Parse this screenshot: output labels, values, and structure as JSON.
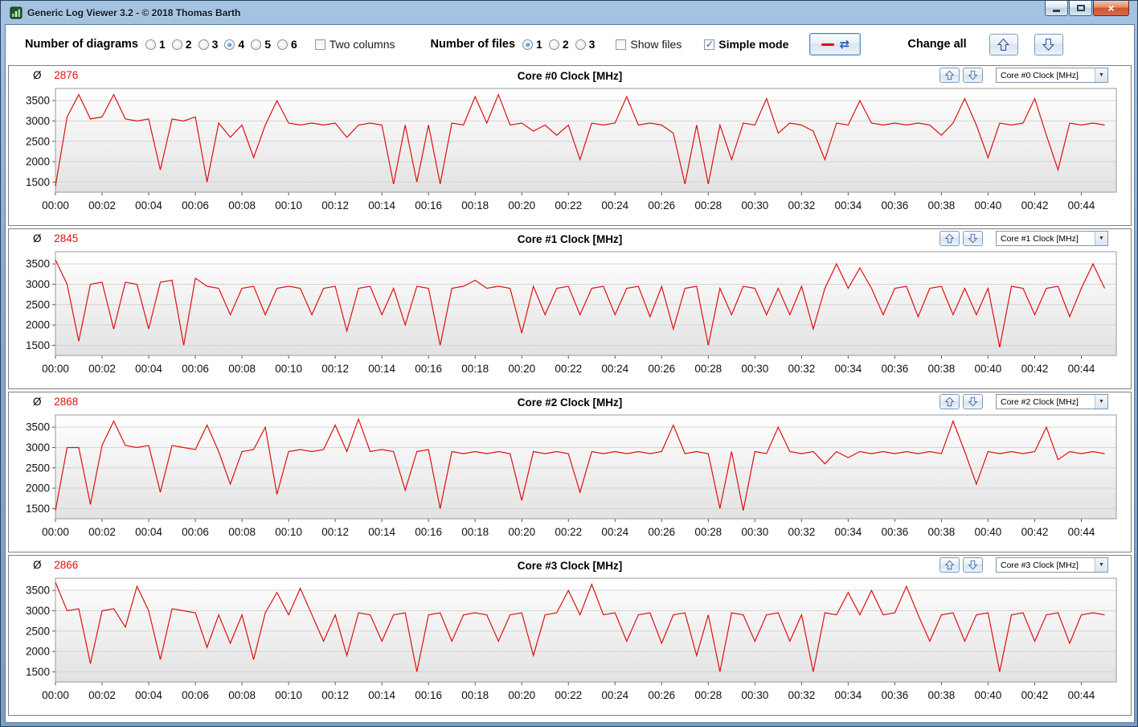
{
  "window": {
    "title": "Generic Log Viewer 3.2 - © 2018 Thomas Barth"
  },
  "colors": {
    "value_red": "#e01010",
    "series_red": "#e01010",
    "arrow_blue": "#3f74c4"
  },
  "icons": {
    "app_icon": "log-viewer-logo",
    "minimize_glyph": "–",
    "close_glyph": "×",
    "refresh_glyph": "⇄",
    "dropdown_arrow_glyph": "▼",
    "check_glyph": "✓",
    "avg_symbol": "Ø"
  },
  "toolbar": {
    "number_of_diagrams": {
      "label": "Number of diagrams",
      "options": [
        "1",
        "2",
        "3",
        "4",
        "5",
        "6"
      ],
      "selected": "4"
    },
    "two_columns": {
      "label": "Two columns",
      "checked": false
    },
    "number_of_files": {
      "label": "Number of files",
      "options": [
        "1",
        "2",
        "3"
      ],
      "selected": "1"
    },
    "show_files": {
      "label": "Show files",
      "checked": false
    },
    "simple_mode": {
      "label": "Simple mode",
      "checked": true
    },
    "change_all": {
      "label": "Change all"
    }
  },
  "panels": [
    {
      "avg_value": "2876",
      "title": "Core #0 Clock [MHz]",
      "dropdown_value": "Core #0 Clock [MHz]"
    },
    {
      "avg_value": "2845",
      "title": "Core #1 Clock [MHz]",
      "dropdown_value": "Core #1 Clock [MHz]"
    },
    {
      "avg_value": "2868",
      "title": "Core #2 Clock [MHz]",
      "dropdown_value": "Core #2 Clock [MHz]"
    },
    {
      "avg_value": "2866",
      "title": "Core #3 Clock [MHz]",
      "dropdown_value": "Core #3 Clock [MHz]"
    }
  ],
  "chart_data": [
    {
      "type": "line",
      "title": "Core #0 Clock [MHz]",
      "xlabel": "",
      "ylabel": "",
      "average": 2876,
      "grid": "horizontal",
      "legend": "none",
      "ylim": [
        1250,
        3800
      ],
      "yticks": [
        1500,
        2000,
        2500,
        3000,
        3500
      ],
      "xlim_min": [
        0,
        45.5
      ],
      "xticks_min": [
        0,
        2,
        4,
        6,
        8,
        10,
        12,
        14,
        16,
        18,
        20,
        22,
        24,
        26,
        28,
        30,
        32,
        34,
        36,
        38,
        40,
        42,
        44
      ],
      "xtick_labels": [
        "00:00",
        "00:02",
        "00:04",
        "00:06",
        "00:08",
        "00:10",
        "00:12",
        "00:14",
        "00:16",
        "00:18",
        "00:20",
        "00:22",
        "00:24",
        "00:26",
        "00:28",
        "00:30",
        "00:32",
        "00:34",
        "00:36",
        "00:38",
        "00:40",
        "00:42",
        "00:44"
      ],
      "series": [
        {
          "name": "Core #0 Clock",
          "color": "#e01010",
          "x_start_min": 0,
          "x_step_min": 0.5,
          "values": [
            1400,
            3100,
            3650,
            3050,
            3100,
            3650,
            3050,
            3000,
            3050,
            1800,
            3050,
            3000,
            3100,
            1500,
            2950,
            2600,
            2900,
            2100,
            2900,
            3500,
            2950,
            2900,
            2950,
            2900,
            2950,
            2600,
            2900,
            2950,
            2900,
            1450,
            2900,
            1500,
            2900,
            1450,
            2950,
            2900,
            3600,
            2950,
            3650,
            2900,
            2950,
            2750,
            2900,
            2650,
            2900,
            2050,
            2950,
            2900,
            2950,
            3600,
            2900,
            2950,
            2900,
            2700,
            1450,
            2900,
            1450,
            2900,
            2050,
            2950,
            2900,
            3550,
            2700,
            2950,
            2900,
            2750,
            2050,
            2950,
            2900,
            3500,
            2950,
            2900,
            2950,
            2900,
            2950,
            2900,
            2650,
            2950,
            3550,
            2900,
            2100,
            2950,
            2900,
            2950,
            3550,
            2650,
            1800,
            2950,
            2900,
            2950,
            2900
          ]
        }
      ]
    },
    {
      "type": "line",
      "title": "Core #1 Clock [MHz]",
      "xlabel": "",
      "ylabel": "",
      "average": 2845,
      "grid": "horizontal",
      "legend": "none",
      "ylim": [
        1250,
        3800
      ],
      "yticks": [
        1500,
        2000,
        2500,
        3000,
        3500
      ],
      "xlim_min": [
        0,
        45.5
      ],
      "xticks_min": [
        0,
        2,
        4,
        6,
        8,
        10,
        12,
        14,
        16,
        18,
        20,
        22,
        24,
        26,
        28,
        30,
        32,
        34,
        36,
        38,
        40,
        42,
        44
      ],
      "xtick_labels": [
        "00:00",
        "00:02",
        "00:04",
        "00:06",
        "00:08",
        "00:10",
        "00:12",
        "00:14",
        "00:16",
        "00:18",
        "00:20",
        "00:22",
        "00:24",
        "00:26",
        "00:28",
        "00:30",
        "00:32",
        "00:34",
        "00:36",
        "00:38",
        "00:40",
        "00:42",
        "00:44"
      ],
      "series": [
        {
          "name": "Core #1 Clock",
          "color": "#e01010",
          "x_start_min": 0,
          "x_step_min": 0.5,
          "values": [
            3600,
            3000,
            1600,
            3000,
            3050,
            1900,
            3050,
            3000,
            1900,
            3050,
            3100,
            1500,
            3150,
            2950,
            2900,
            2250,
            2900,
            2950,
            2250,
            2900,
            2950,
            2900,
            2250,
            2900,
            2950,
            1850,
            2900,
            2950,
            2250,
            2900,
            2000,
            2950,
            2900,
            1500,
            2900,
            2950,
            3100,
            2900,
            2950,
            2900,
            1800,
            2950,
            2250,
            2900,
            2950,
            2250,
            2900,
            2950,
            2250,
            2900,
            2950,
            2200,
            2950,
            1900,
            2900,
            2950,
            1500,
            2900,
            2250,
            2950,
            2900,
            2250,
            2900,
            2250,
            2950,
            1900,
            2900,
            3500,
            2900,
            3400,
            2900,
            2250,
            2900,
            2950,
            2200,
            2900,
            2950,
            2250,
            2900,
            2250,
            2900,
            1450,
            2950,
            2900,
            2250,
            2900,
            2950,
            2200,
            2900,
            3500,
            2900
          ]
        }
      ]
    },
    {
      "type": "line",
      "title": "Core #2 Clock [MHz]",
      "xlabel": "",
      "ylabel": "",
      "average": 2868,
      "grid": "horizontal",
      "legend": "none",
      "ylim": [
        1250,
        3800
      ],
      "yticks": [
        1500,
        2000,
        2500,
        3000,
        3500
      ],
      "xlim_min": [
        0,
        45.5
      ],
      "xticks_min": [
        0,
        2,
        4,
        6,
        8,
        10,
        12,
        14,
        16,
        18,
        20,
        22,
        24,
        26,
        28,
        30,
        32,
        34,
        36,
        38,
        40,
        42,
        44
      ],
      "xtick_labels": [
        "00:00",
        "00:02",
        "00:04",
        "00:06",
        "00:08",
        "00:10",
        "00:12",
        "00:14",
        "00:16",
        "00:18",
        "00:20",
        "00:22",
        "00:24",
        "00:26",
        "00:28",
        "00:30",
        "00:32",
        "00:34",
        "00:36",
        "00:38",
        "00:40",
        "00:42",
        "00:44"
      ],
      "series": [
        {
          "name": "Core #2 Clock",
          "color": "#e01010",
          "x_start_min": 0,
          "x_step_min": 0.5,
          "values": [
            1450,
            3000,
            3000,
            1600,
            3050,
            3650,
            3050,
            3000,
            3050,
            1900,
            3050,
            3000,
            2950,
            3550,
            2900,
            2100,
            2900,
            2950,
            3500,
            1850,
            2900,
            2950,
            2900,
            2950,
            3550,
            2900,
            3700,
            2900,
            2950,
            2900,
            1950,
            2900,
            2950,
            1500,
            2900,
            2850,
            2900,
            2850,
            2900,
            2850,
            1700,
            2900,
            2850,
            2900,
            2850,
            1900,
            2900,
            2850,
            2900,
            2850,
            2900,
            2850,
            2900,
            3550,
            2850,
            2900,
            2850,
            1500,
            2900,
            1450,
            2900,
            2850,
            3500,
            2900,
            2850,
            2900,
            2600,
            2900,
            2750,
            2900,
            2850,
            2900,
            2850,
            2900,
            2850,
            2900,
            2850,
            3650,
            2900,
            2100,
            2900,
            2850,
            2900,
            2850,
            2900,
            3500,
            2700,
            2900,
            2850,
            2900,
            2850
          ]
        }
      ]
    },
    {
      "type": "line",
      "title": "Core #3 Clock [MHz]",
      "xlabel": "",
      "ylabel": "",
      "average": 2866,
      "grid": "horizontal",
      "legend": "none",
      "ylim": [
        1250,
        3800
      ],
      "yticks": [
        1500,
        2000,
        2500,
        3000,
        3500
      ],
      "xlim_min": [
        0,
        45.5
      ],
      "xticks_min": [
        0,
        2,
        4,
        6,
        8,
        10,
        12,
        14,
        16,
        18,
        20,
        22,
        24,
        26,
        28,
        30,
        32,
        34,
        36,
        38,
        40,
        42,
        44
      ],
      "xtick_labels": [
        "00:00",
        "00:02",
        "00:04",
        "00:06",
        "00:08",
        "00:10",
        "00:12",
        "00:14",
        "00:16",
        "00:18",
        "00:20",
        "00:22",
        "00:24",
        "00:26",
        "00:28",
        "00:30",
        "00:32",
        "00:34",
        "00:36",
        "00:38",
        "00:40",
        "00:42",
        "00:44"
      ],
      "series": [
        {
          "name": "Core #3 Clock",
          "color": "#e01010",
          "x_start_min": 0,
          "x_step_min": 0.5,
          "values": [
            3700,
            3000,
            3050,
            1700,
            3000,
            3050,
            2600,
            3600,
            3000,
            1800,
            3050,
            3000,
            2950,
            2100,
            2900,
            2200,
            2900,
            1800,
            2950,
            3450,
            2900,
            3550,
            2900,
            2250,
            2900,
            1900,
            2950,
            2900,
            2250,
            2900,
            2950,
            1500,
            2900,
            2950,
            2250,
            2900,
            2950,
            2900,
            2250,
            2900,
            2950,
            1900,
            2900,
            2950,
            3500,
            2900,
            3650,
            2900,
            2950,
            2250,
            2900,
            2950,
            2200,
            2900,
            2950,
            1900,
            2900,
            1500,
            2950,
            2900,
            2250,
            2900,
            2950,
            2250,
            2900,
            1500,
            2950,
            2900,
            3450,
            2900,
            3500,
            2900,
            2950,
            3600,
            2900,
            2250,
            2900,
            2950,
            2250,
            2900,
            2950,
            1500,
            2900,
            2950,
            2250,
            2900,
            2950,
            2200,
            2900,
            2950,
            2900
          ]
        }
      ]
    }
  ]
}
